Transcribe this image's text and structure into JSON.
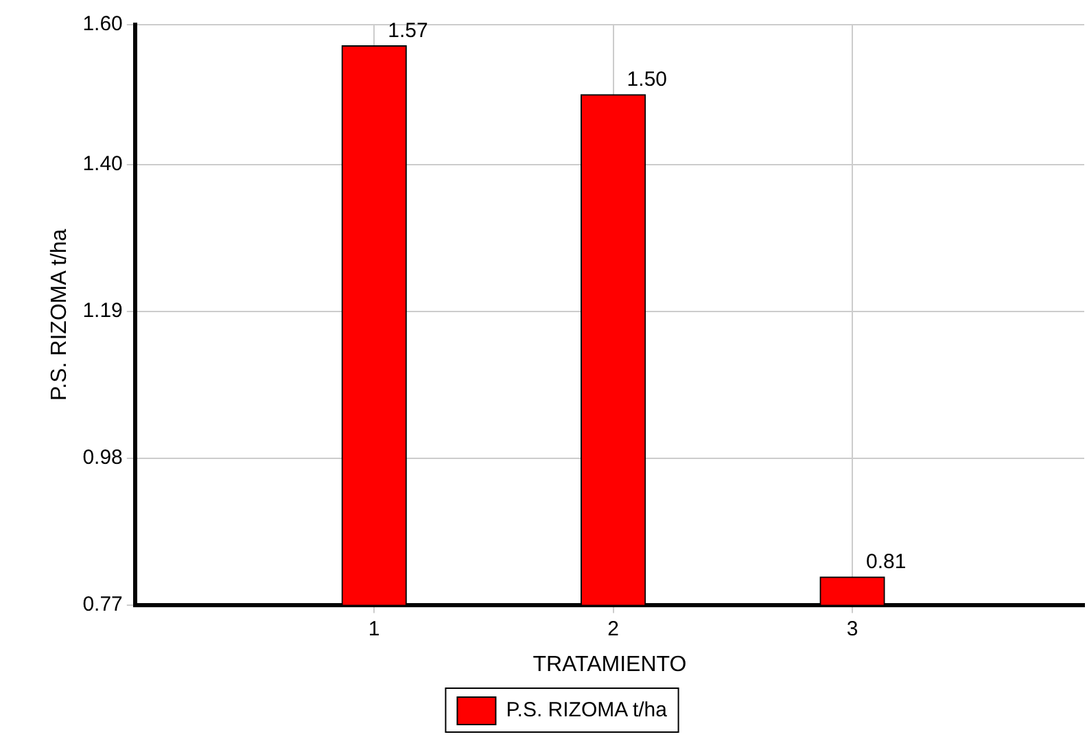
{
  "chart_data": {
    "type": "bar",
    "xlabel": "TRATAMIENTO",
    "ylabel": "P.S. RIZOMA t/ha",
    "x": [
      1,
      2,
      3
    ],
    "xlim": [
      0,
      3.97
    ],
    "xticks": [
      1,
      2,
      3
    ],
    "ylim": [
      0.77,
      1.6
    ],
    "yticks": [
      0.77,
      0.98,
      1.19,
      {
        "value": 1.4,
        "label": "1.40"
      },
      {
        "value": 1.6,
        "label": "1.60"
      }
    ],
    "series": [
      {
        "name": "P.S. RIZOMA t/ha",
        "color": "#ff0000",
        "values": [
          1.57,
          1.5,
          0.81
        ],
        "value_labels": [
          "1.57",
          "1.50",
          "0.81"
        ]
      }
    ],
    "grid": true,
    "legend": "bottom"
  }
}
